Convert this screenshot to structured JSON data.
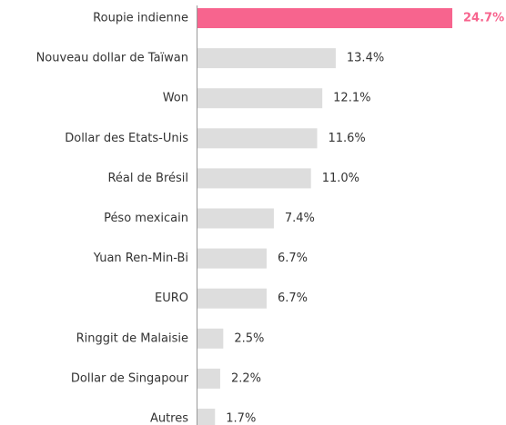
{
  "chart_data": {
    "type": "barh",
    "categories": [
      "Roupie indienne",
      "Nouveau dollar de Taïwan",
      "Won",
      "Dollar des Etats-Unis",
      "Réal de Brésil",
      "Péso mexicain",
      "Yuan Ren-Min-Bi",
      "EURO",
      "Ringgit de Malaisie",
      "Dollar de Singapour",
      "Autres"
    ],
    "values": [
      24.7,
      13.4,
      12.1,
      11.6,
      11.0,
      7.4,
      6.7,
      6.7,
      2.5,
      2.2,
      1.7
    ],
    "value_labels": [
      "24.7%",
      "13.4%",
      "12.1%",
      "11.6%",
      "11.0%",
      "7.4%",
      "6.7%",
      "6.7%",
      "2.5%",
      "2.2%",
      "1.7%"
    ],
    "colors": [
      "#f7648e",
      "#dddddd",
      "#dddddd",
      "#dddddd",
      "#dddddd",
      "#dddddd",
      "#dddddd",
      "#dddddd",
      "#dddddd",
      "#dddddd",
      "#dddddd"
    ],
    "label_colors": [
      "#f7648e",
      "#333333",
      "#333333",
      "#333333",
      "#333333",
      "#333333",
      "#333333",
      "#333333",
      "#333333",
      "#333333",
      "#333333"
    ]
  }
}
